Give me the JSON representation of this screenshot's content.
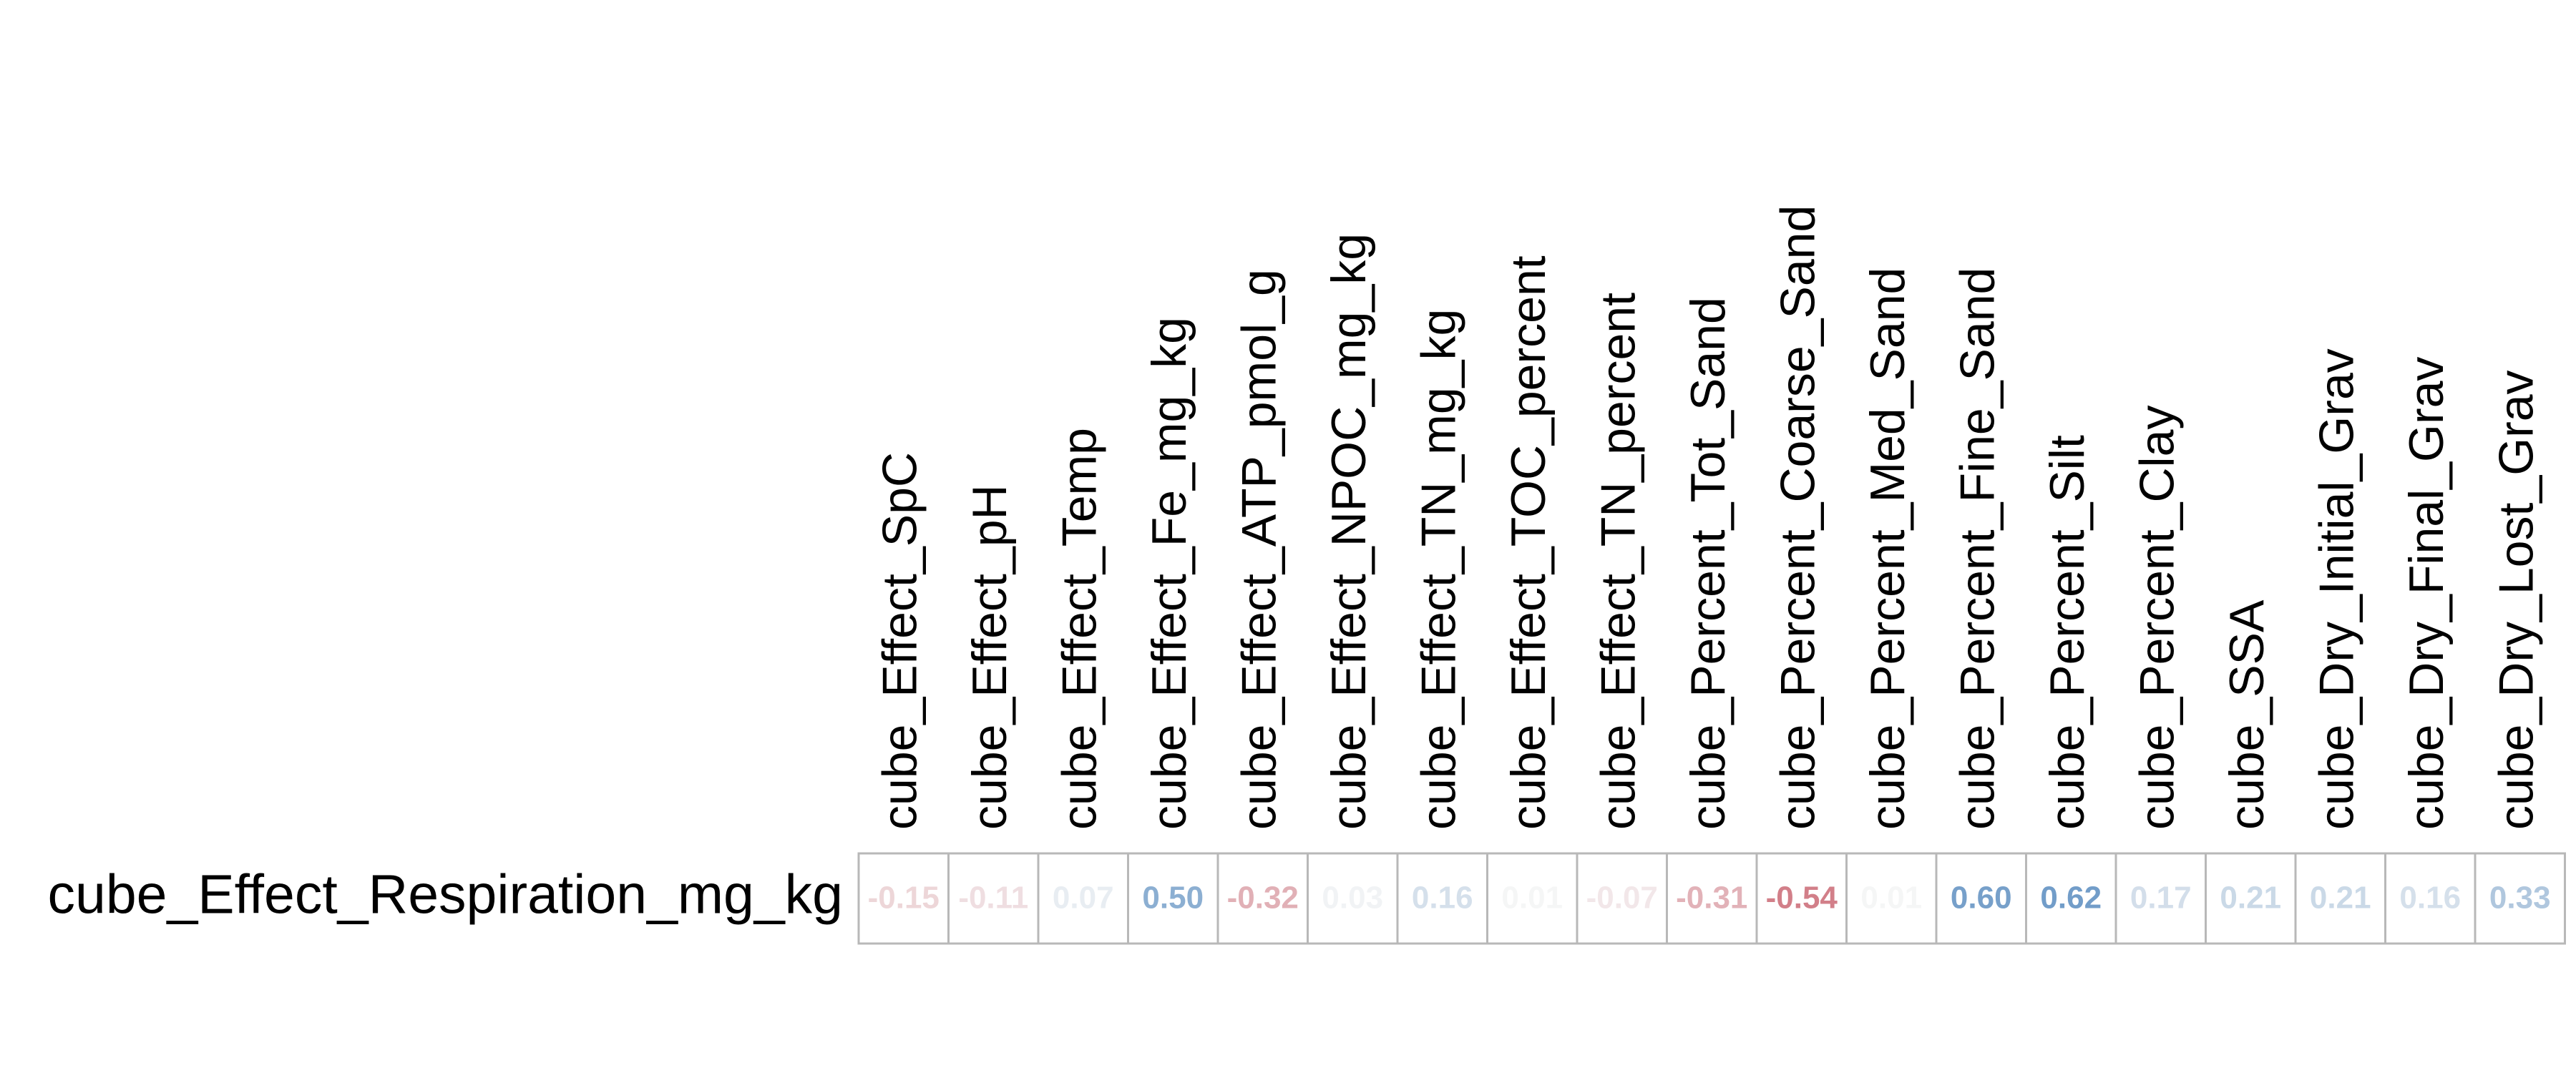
{
  "chart_data": {
    "type": "heatmap",
    "title": "",
    "xlabel": "",
    "ylabel": "",
    "rows": [
      "cube_Effect_Respiration_mg_kg"
    ],
    "columns": [
      "cube_Effect_SpC",
      "cube_Effect_pH",
      "cube_Effect_Temp",
      "cube_Effect_Fe_mg_kg",
      "cube_Effect_ATP_pmol_g",
      "cube_Effect_NPOC_mg_kg",
      "cube_Effect_TN_mg_kg",
      "cube_Effect_TOC_percent",
      "cube_Effect_TN_percent",
      "cube_Percent_Tot_Sand",
      "cube_Percent_Coarse_Sand",
      "cube_Percent_Med_Sand",
      "cube_Percent_Fine_Sand",
      "cube_Percent_Silt",
      "cube_Percent_Clay",
      "cube_SSA",
      "cube_Dry_Initial_Grav",
      "cube_Dry_Final_Grav",
      "cube_Dry_Lost_Grav"
    ],
    "values": [
      [
        -0.15,
        -0.11,
        0.07,
        0.5,
        -0.32,
        0.03,
        0.16,
        0.01,
        -0.07,
        -0.31,
        -0.54,
        0.01,
        0.6,
        0.62,
        0.17,
        0.21,
        0.21,
        0.16,
        0.33
      ]
    ],
    "value_labels": [
      [
        "-0.15",
        "-0.11",
        "0.07",
        "0.50",
        "-0.32",
        "0.03",
        "0.16",
        "0.01",
        "-0.07",
        "-0.31",
        "-0.54",
        "0.01",
        "0.60",
        "0.62",
        "0.17",
        "0.21",
        "0.21",
        "0.16",
        "0.33"
      ]
    ],
    "colors": {
      "positive": "#2166ac",
      "negative": "#b2182b",
      "neutral": "#f7f7f7",
      "border": "#b8b8b8"
    }
  }
}
